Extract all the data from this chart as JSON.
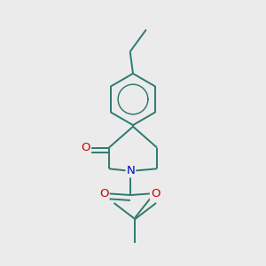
{
  "bg_color": "#ebebeb",
  "bond_color": "#2d7a6e",
  "N_color": "#0000cc",
  "O_color": "#cc0000",
  "bond_width": 1.4,
  "figsize": [
    3.0,
    3.0
  ],
  "dpi": 100,
  "xlim": [
    0.2,
    0.8
  ],
  "ylim": [
    0.05,
    0.95
  ]
}
